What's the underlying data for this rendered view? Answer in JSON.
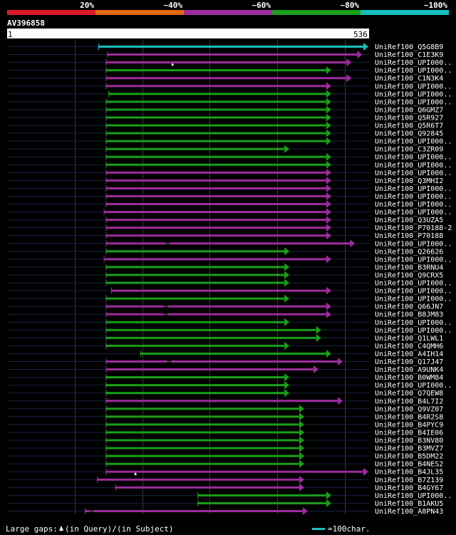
{
  "chart_data": {
    "type": "alignment-overview",
    "query": {
      "name": "AV396858",
      "start": "1",
      "end": "536",
      "length": 536
    },
    "identity_scale": [
      {
        "label": "20%",
        "color": "#e0192d"
      },
      {
        "label": "~40%",
        "color": "#e06a12"
      },
      {
        "label": "~60%",
        "color": "#9d2c9e"
      },
      {
        "label": "~80%",
        "color": "#1a9e1a"
      },
      {
        "label": "~100%",
        "color": "#1abebe"
      }
    ],
    "grid_positions": [
      100,
      200,
      300,
      400,
      500
    ],
    "hits": [
      {
        "label": "UniRef100_Q5G8B9",
        "start": 135,
        "end": 536,
        "bin": 4
      },
      {
        "label": "UniRef100_C1E3K9",
        "start": 148,
        "end": 526,
        "bin": 2
      },
      {
        "label": "UniRef100_UPI000..",
        "start": 146,
        "end": 510,
        "bin": 2,
        "gap": {
          "at": 245,
          "type": "query"
        }
      },
      {
        "label": "UniRef100_UPI000..",
        "start": 146,
        "end": 480,
        "bin": 3
      },
      {
        "label": "UniRef100_C1N3K4",
        "start": 146,
        "end": 510,
        "bin": 2
      },
      {
        "label": "UniRef100_UPI000..",
        "start": 146,
        "end": 480,
        "bin": 2
      },
      {
        "label": "UniRef100_UPI000..",
        "start": 150,
        "end": 480,
        "bin": 3
      },
      {
        "label": "UniRef100_UPI000..",
        "start": 146,
        "end": 480,
        "bin": 3
      },
      {
        "label": "UniRef100_Q6GMZ7",
        "start": 146,
        "end": 480,
        "bin": 3
      },
      {
        "label": "UniRef100_Q5R927",
        "start": 146,
        "end": 480,
        "bin": 3
      },
      {
        "label": "UniRef100_Q5R6T7",
        "start": 146,
        "end": 480,
        "bin": 3
      },
      {
        "label": "UniRef100_Q92845",
        "start": 146,
        "end": 480,
        "bin": 3
      },
      {
        "label": "UniRef100_UPI000..",
        "start": 146,
        "end": 480,
        "bin": 3
      },
      {
        "label": "UniRef100_C3ZR09",
        "start": 146,
        "end": 418,
        "bin": 3
      },
      {
        "label": "UniRef100_UPI000..",
        "start": 146,
        "end": 480,
        "bin": 3
      },
      {
        "label": "UniRef100_UPI000..",
        "start": 146,
        "end": 480,
        "bin": 3
      },
      {
        "label": "UniRef100_UPI000..",
        "start": 146,
        "end": 480,
        "bin": 2
      },
      {
        "label": "UniRef100_Q3MHI2",
        "start": 146,
        "end": 480,
        "bin": 2
      },
      {
        "label": "UniRef100_UPI000..",
        "start": 146,
        "end": 480,
        "bin": 2
      },
      {
        "label": "UniRef100_UPI000..",
        "start": 146,
        "end": 480,
        "bin": 2
      },
      {
        "label": "UniRef100_UPI000..",
        "start": 146,
        "end": 480,
        "bin": 2
      },
      {
        "label": "UniRef100_UPI000..",
        "start": 143,
        "end": 480,
        "bin": 2
      },
      {
        "label": "UniRef100_Q3UZA5",
        "start": 146,
        "end": 480,
        "bin": 2
      },
      {
        "label": "UniRef100_P70188-2",
        "start": 146,
        "end": 480,
        "bin": 2
      },
      {
        "label": "UniRef100_P70188",
        "start": 146,
        "end": 480,
        "bin": 2
      },
      {
        "label": "UniRef100_UPI000..",
        "start": 146,
        "end": 515,
        "bin": 2,
        "gap": {
          "at": 238,
          "type": "subject"
        }
      },
      {
        "label": "UniRef100_Q26626",
        "start": 146,
        "end": 418,
        "bin": 3
      },
      {
        "label": "UniRef100_UPI000..",
        "start": 143,
        "end": 480,
        "bin": 2
      },
      {
        "label": "UniRef100_B3RNU4",
        "start": 146,
        "end": 418,
        "bin": 3
      },
      {
        "label": "UniRef100_Q9CRX5",
        "start": 146,
        "end": 418,
        "bin": 3
      },
      {
        "label": "UniRef100_UPI000..",
        "start": 146,
        "end": 418,
        "bin": 3
      },
      {
        "label": "UniRef100_UPI000..",
        "start": 154,
        "end": 480,
        "bin": 2
      },
      {
        "label": "UniRef100_UPI000..",
        "start": 146,
        "end": 418,
        "bin": 3
      },
      {
        "label": "UniRef100_Q66JN7",
        "start": 146,
        "end": 480,
        "bin": 2,
        "gap": {
          "at": 235,
          "type": "subject"
        }
      },
      {
        "label": "UniRef100_B8JM83",
        "start": 146,
        "end": 480,
        "bin": 2,
        "gap": {
          "at": 235,
          "type": "subject"
        }
      },
      {
        "label": "UniRef100_UPI000..",
        "start": 146,
        "end": 418,
        "bin": 3
      },
      {
        "label": "UniRef100_UPI000..",
        "start": 146,
        "end": 465,
        "bin": 3
      },
      {
        "label": "UniRef100_Q1LWL1",
        "start": 146,
        "end": 465,
        "bin": 3
      },
      {
        "label": "UniRef100_C4QMH6",
        "start": 146,
        "end": 418,
        "bin": 3
      },
      {
        "label": "UniRef100_A4IH14",
        "start": 197,
        "end": 480,
        "bin": 3
      },
      {
        "label": "UniRef100_Q17J47",
        "start": 146,
        "end": 497,
        "bin": 2,
        "gap": {
          "at": 240,
          "type": "subject"
        }
      },
      {
        "label": "UniRef100_A9UNK4",
        "start": 146,
        "end": 461,
        "bin": 2
      },
      {
        "label": "UniRef100_B0WM84",
        "start": 146,
        "end": 418,
        "bin": 3
      },
      {
        "label": "UniRef100_UPI000..",
        "start": 146,
        "end": 418,
        "bin": 3
      },
      {
        "label": "UniRef100_Q7QEW8",
        "start": 146,
        "end": 418,
        "bin": 3
      },
      {
        "label": "UniRef100_B4L7I2",
        "start": 146,
        "end": 497,
        "bin": 2
      },
      {
        "label": "UniRef100_Q9VZ07",
        "start": 146,
        "end": 440,
        "bin": 3
      },
      {
        "label": "UniRef100_B4R2S8",
        "start": 146,
        "end": 440,
        "bin": 3
      },
      {
        "label": "UniRef100_B4PYC9",
        "start": 146,
        "end": 440,
        "bin": 3
      },
      {
        "label": "UniRef100_B4IE06",
        "start": 146,
        "end": 440,
        "bin": 3
      },
      {
        "label": "UniRef100_B3NV80",
        "start": 146,
        "end": 440,
        "bin": 3
      },
      {
        "label": "UniRef100_B3MVZ7",
        "start": 146,
        "end": 440,
        "bin": 3
      },
      {
        "label": "UniRef100_B5DM22",
        "start": 146,
        "end": 440,
        "bin": 3
      },
      {
        "label": "UniRef100_B4NES2",
        "start": 146,
        "end": 440,
        "bin": 3
      },
      {
        "label": "UniRef100_B4JL35",
        "start": 146,
        "end": 536,
        "bin": 2,
        "gap": {
          "at": 190,
          "type": "query"
        }
      },
      {
        "label": "UniRef100_B7Z139",
        "start": 133,
        "end": 440,
        "bin": 2
      },
      {
        "label": "UniRef100_B4GY67",
        "start": 160,
        "end": 440,
        "bin": 2
      },
      {
        "label": "UniRef100_UPI000..",
        "start": 282,
        "end": 480,
        "bin": 3
      },
      {
        "label": "UniRef100_B1AKU5",
        "start": 282,
        "end": 480,
        "bin": 3
      },
      {
        "label": "UniRef100_A8PN43",
        "start": 115,
        "end": 445,
        "bin": 2,
        "gap": {
          "at": 125,
          "type": "subject"
        }
      }
    ],
    "footer": {
      "gaps_prefix": "Large gaps:",
      "gaps_query": "(in Query)/",
      "gaps_subject": "(in Subject)",
      "scale_label": "=100char."
    }
  }
}
